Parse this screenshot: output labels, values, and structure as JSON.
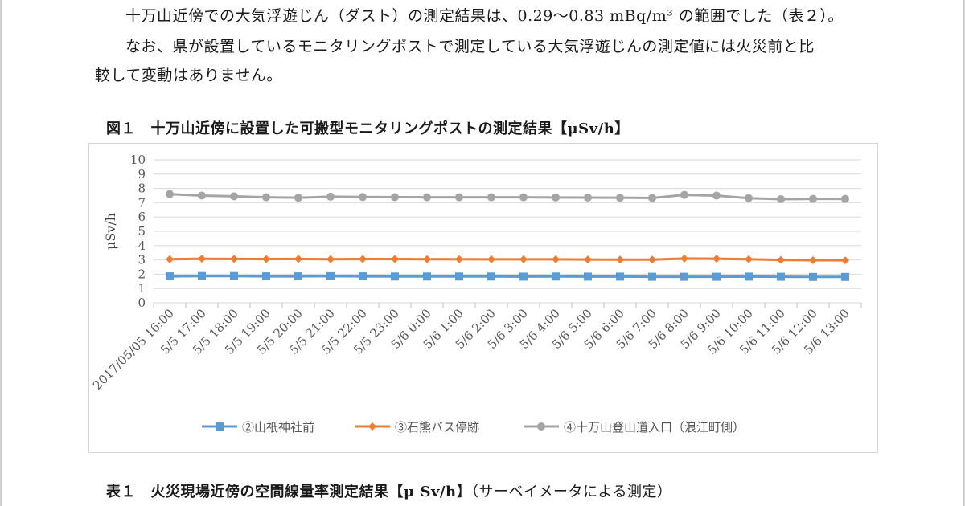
{
  "document": {
    "para1": "十万山近傍での大気浮遊じん（ダスト）の測定結果は、0.29～0.83 mBq/m³ の範囲でした（表２）。",
    "para2_line1": "なお、県が設置しているモニタリングポストで測定している大気浮遊じんの測定値には火災前と比",
    "para2_line2": "較して変動はありません。",
    "figure_caption": "図１　十万山近傍に設置した可搬型モニタリングポストの測定結果【μSv/h】",
    "table_caption": "表１　火災現場近傍の空間線量率測定結果【",
    "table_caption_unit": "μ Sv/h",
    "table_caption_tail": "】（サーベイメータによる測定）"
  },
  "chart_data": {
    "type": "line",
    "ylabel": "μSv/h",
    "ylim": [
      0,
      10
    ],
    "yticks": [
      "0",
      "1",
      "2",
      "3",
      "4",
      "5",
      "6",
      "7",
      "8",
      "9",
      "10"
    ],
    "grid": true,
    "legend_position": "bottom",
    "categories": [
      "2017/05/05 16:00",
      "5/5 17:00",
      "5/5 18:00",
      "5/5 19:00",
      "5/5 20:00",
      "5/5 21:00",
      "5/5 22:00",
      "5/5 23:00",
      "5/6 0:00",
      "5/6 1:00",
      "5/6 2:00",
      "5/6 3:00",
      "5/6 4:00",
      "5/6 5:00",
      "5/6 6:00",
      "5/6 7:00",
      "5/6 8:00",
      "5/6 9:00",
      "5/6 10:00",
      "5/6 11:00",
      "5/6 12:00",
      "5/6 13:00"
    ],
    "series": [
      {
        "name": "②山祇神社前",
        "color": "#5b9bd5",
        "marker": "square",
        "values": [
          1.85,
          1.87,
          1.87,
          1.85,
          1.85,
          1.86,
          1.85,
          1.84,
          1.84,
          1.84,
          1.84,
          1.83,
          1.84,
          1.83,
          1.83,
          1.82,
          1.82,
          1.82,
          1.83,
          1.82,
          1.81,
          1.81
        ]
      },
      {
        "name": "③石熊バス停跡",
        "color": "#ed7d31",
        "marker": "diamond",
        "values": [
          3.05,
          3.08,
          3.07,
          3.06,
          3.07,
          3.05,
          3.06,
          3.06,
          3.05,
          3.05,
          3.04,
          3.04,
          3.04,
          3.03,
          3.02,
          3.02,
          3.1,
          3.08,
          3.05,
          3.0,
          2.98,
          2.97
        ]
      },
      {
        "name": "④十万山登山道入口（浪江町側）",
        "color": "#a5a5a5",
        "marker": "circle",
        "values": [
          7.6,
          7.5,
          7.45,
          7.38,
          7.35,
          7.42,
          7.4,
          7.39,
          7.38,
          7.38,
          7.38,
          7.38,
          7.37,
          7.36,
          7.35,
          7.33,
          7.55,
          7.5,
          7.32,
          7.25,
          7.27,
          7.27
        ]
      }
    ]
  }
}
